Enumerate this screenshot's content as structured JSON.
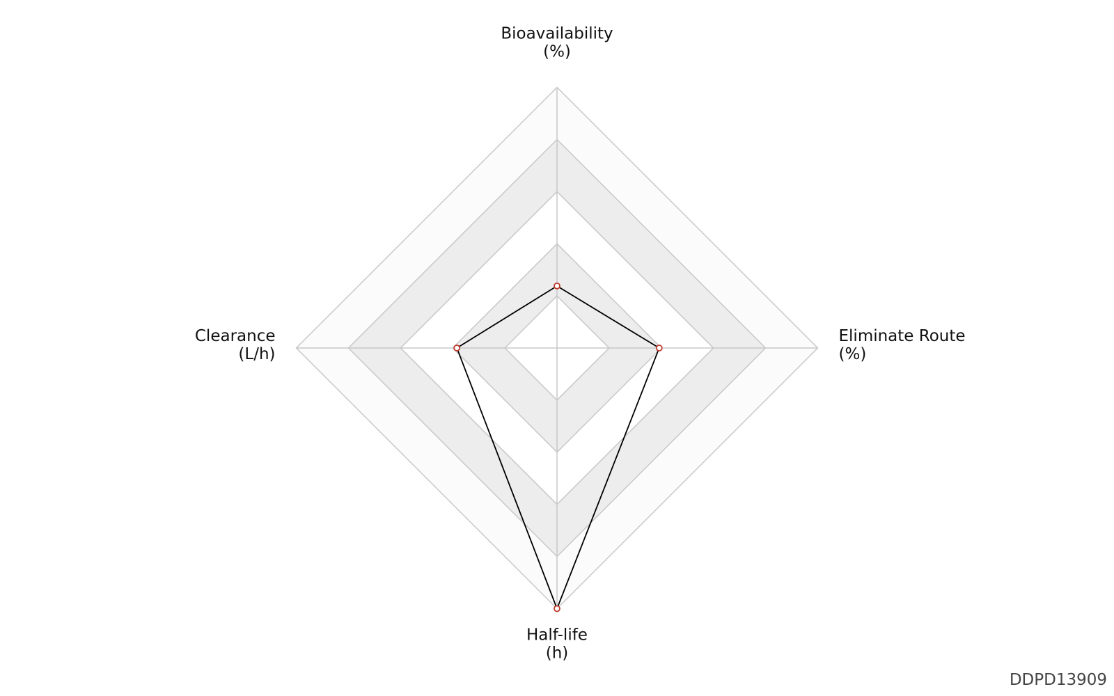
{
  "chart_data": {
    "type": "radar",
    "axes": [
      {
        "name": "Bioavailability",
        "unit": "(%)"
      },
      {
        "name": "Eliminate Route",
        "unit": "(%)"
      },
      {
        "name": "Half-life",
        "unit": "(h)"
      },
      {
        "name": "Clearance",
        "unit": "(L/h)"
      }
    ],
    "values": [
      1.19,
      1.96,
      5.0,
      1.92
    ],
    "rlim": [
      0,
      5
    ],
    "rticks": [
      1,
      2,
      3,
      4,
      5
    ],
    "band_colors": [
      "#ffffff",
      "#ededed",
      "#ffffff",
      "#ededed",
      "#fbfbfb"
    ],
    "line_color": "#000000",
    "marker_color": "#c0392b",
    "id_label": "DDPD13909"
  }
}
